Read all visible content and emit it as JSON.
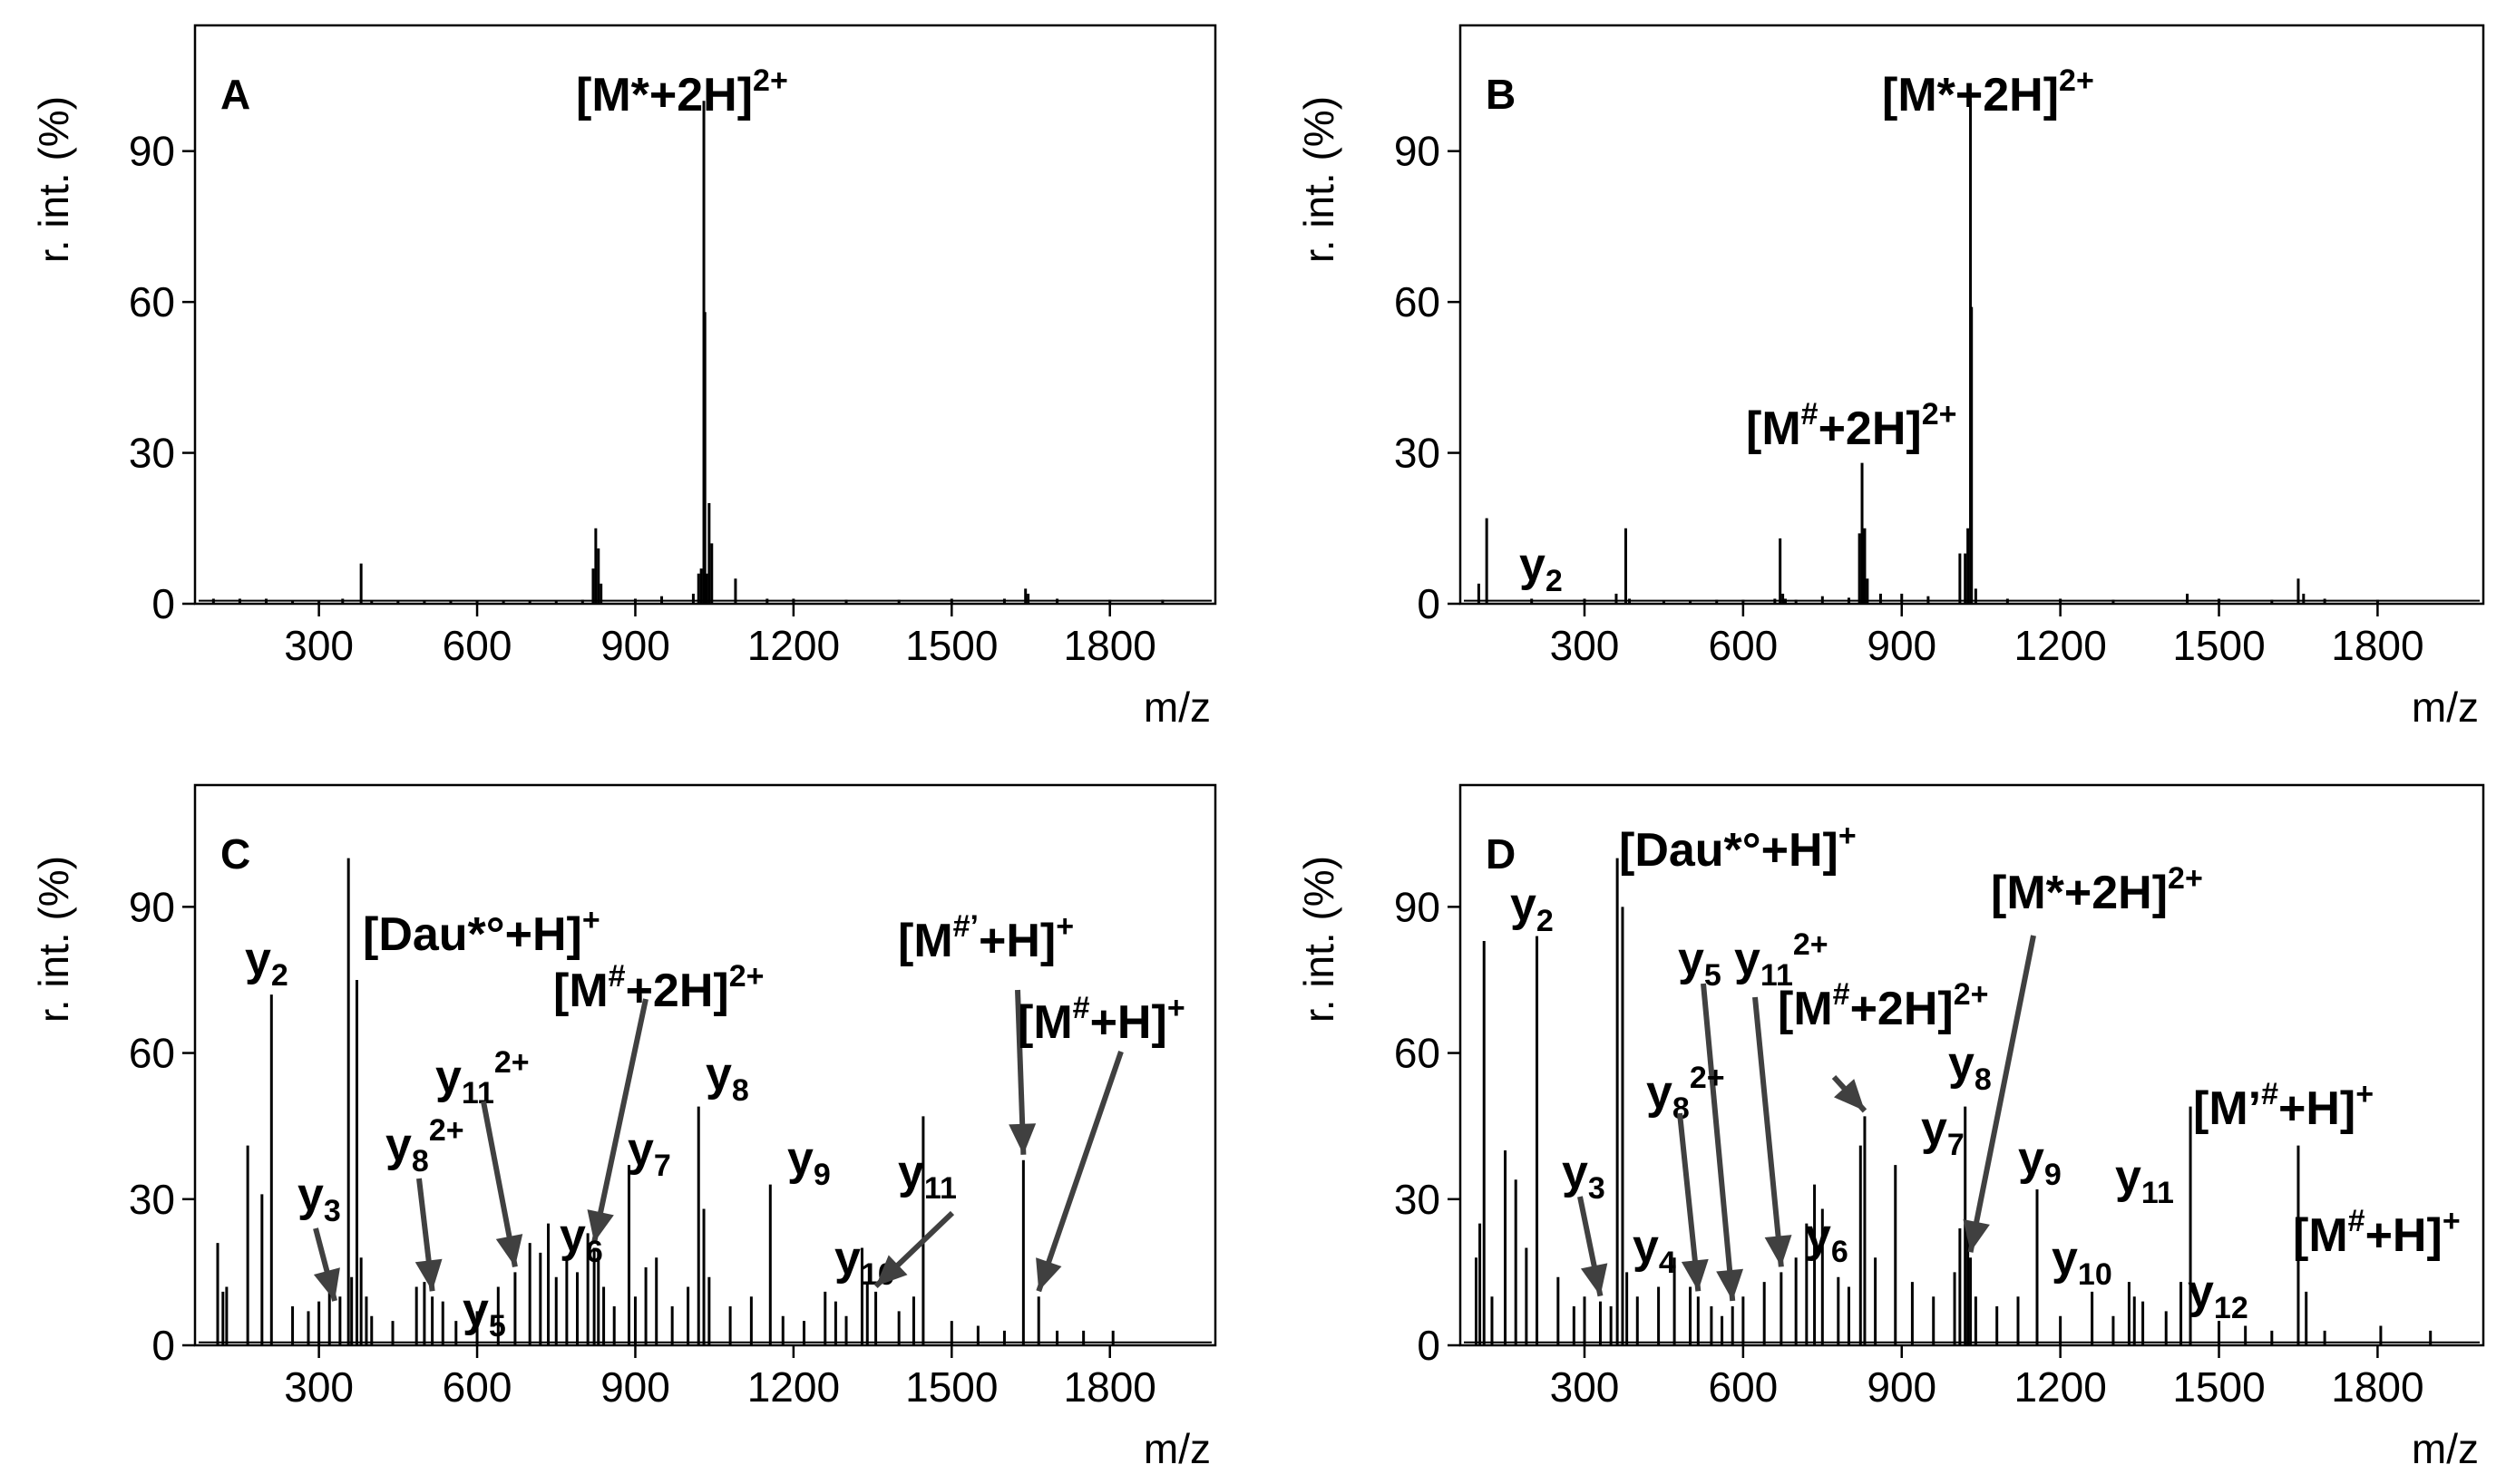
{
  "axes": {
    "ylabel": "r. int. (%)",
    "xlabel": "m/z",
    "ylim": [
      0,
      115
    ],
    "yticks": [
      0,
      30,
      60,
      90
    ],
    "xlim": [
      65,
      2000
    ],
    "xticks": [
      300,
      600,
      900,
      1200,
      1500,
      1800
    ]
  },
  "chart_data": [
    {
      "type": "bar",
      "panel": "A",
      "xlabel": "m/z",
      "ylabel": "r. int. (%)",
      "xlim": [
        65,
        2000
      ],
      "ylim": [
        0,
        115
      ],
      "x": [
        100,
        150,
        200,
        250,
        300,
        345,
        380,
        400,
        450,
        500,
        550,
        600,
        650,
        700,
        750,
        800,
        820,
        825,
        830,
        835,
        900,
        950,
        1010,
        1020,
        1025,
        1030,
        1032,
        1035,
        1040,
        1045,
        1090,
        1150,
        1200,
        1300,
        1400,
        1500,
        1600,
        1640,
        1645,
        1700,
        1800,
        1900
      ],
      "y": [
        1,
        1,
        1,
        0.5,
        0.5,
        1,
        8,
        0.5,
        0.5,
        0.5,
        0.5,
        0.5,
        0.5,
        0.5,
        0.5,
        0.8,
        7,
        15,
        11,
        4,
        1,
        1.5,
        2,
        6,
        7,
        100,
        58,
        6,
        20,
        12,
        5,
        1,
        1,
        0.8,
        0.8,
        1,
        1,
        3,
        2,
        1,
        0.8,
        0.8
      ],
      "annotations": [
        {
          "id": "ann-0",
          "text": "[M*+2H]",
          "sup": "2+",
          "x": 1030,
          "y": 100
        }
      ]
    },
    {
      "type": "bar",
      "panel": "B",
      "xlabel": "m/z",
      "ylabel": "r. int. (%)",
      "xlim": [
        65,
        2000
      ],
      "ylim": [
        0,
        115
      ],
      "x": [
        100,
        115,
        200,
        300,
        360,
        378,
        385,
        450,
        500,
        550,
        600,
        660,
        670,
        675,
        680,
        700,
        750,
        800,
        820,
        825,
        830,
        835,
        860,
        900,
        950,
        1010,
        1020,
        1025,
        1030,
        1032,
        1040,
        1100,
        1200,
        1300,
        1440,
        1500,
        1600,
        1650,
        1660,
        1700,
        1800
      ],
      "y": [
        4,
        17,
        1,
        1,
        2,
        15,
        1,
        0.5,
        0.5,
        0.8,
        0.8,
        1,
        13,
        2,
        1,
        0.8,
        1.5,
        1.2,
        14,
        28,
        15,
        5,
        2,
        2,
        1.5,
        10,
        10,
        15,
        100,
        59,
        3,
        1,
        1,
        0.8,
        2,
        1,
        0.8,
        5,
        2,
        1,
        0.8
      ],
      "annotations": [
        {
          "id": "ann-0",
          "text": "[M*+2H]",
          "sup": "2+",
          "x": 1030,
          "y": 100
        },
        {
          "id": "ann-1",
          "text": "[M",
          "sup": "#",
          "text2": "+2H]",
          "sup2": "2+",
          "x": 825,
          "y": 28
        },
        {
          "id": "ann-2",
          "text": "y",
          "sub": "2",
          "x": 200,
          "y": 2
        }
      ]
    },
    {
      "type": "bar",
      "panel": "C",
      "xlabel": "m/z",
      "ylabel": "r. int. (%)",
      "xlim": [
        65,
        2000
      ],
      "ylim": [
        0,
        115
      ],
      "x": [
        108,
        118,
        125,
        165,
        192,
        210,
        250,
        280,
        300,
        320,
        340,
        356,
        362,
        372,
        380,
        390,
        400,
        440,
        485,
        500,
        515,
        535,
        560,
        600,
        640,
        672,
        700,
        720,
        735,
        750,
        770,
        790,
        810,
        822,
        830,
        840,
        860,
        888,
        900,
        920,
        940,
        970,
        1000,
        1020,
        1030,
        1040,
        1080,
        1120,
        1156,
        1180,
        1220,
        1260,
        1280,
        1300,
        1330,
        1340,
        1356,
        1400,
        1428,
        1446,
        1500,
        1550,
        1600,
        1636,
        1665,
        1700,
        1750,
        1806
      ],
      "y": [
        21,
        11,
        12,
        41,
        31,
        72,
        8,
        7,
        9,
        12,
        10,
        100,
        14,
        75,
        18,
        10,
        6,
        5,
        12,
        13,
        10,
        9,
        5,
        7,
        12,
        15,
        21,
        19,
        25,
        14,
        18,
        15,
        23,
        20,
        19,
        12,
        8,
        37,
        10,
        16,
        18,
        8,
        12,
        49,
        28,
        14,
        8,
        10,
        33,
        6,
        5,
        11,
        9,
        6,
        20,
        13,
        11,
        7,
        10,
        47,
        5,
        4,
        3,
        38,
        10,
        3,
        3,
        3
      ],
      "annotations": [
        {
          "id": "ann-0",
          "text": "y",
          "sub": "2",
          "x": 210,
          "y": 72
        },
        {
          "id": "ann-1",
          "text": "[Dau*°+H]",
          "sup": "+",
          "x": 372,
          "y": 75
        },
        {
          "id": "ann-2",
          "text": "[M",
          "sup": "#",
          "text2": "+2H]",
          "sup2": "2+",
          "x": 822,
          "y": 20
        },
        {
          "id": "ann-3",
          "text": "[M",
          "sup": "#’",
          "text2": "+H]",
          "sup2": "+",
          "x": 1636,
          "y": 38
        },
        {
          "id": "ann-4",
          "text": "[M",
          "sup": "#",
          "text2": "+H]",
          "sup2": "+",
          "x": 1665,
          "y": 10
        },
        {
          "id": "ann-5",
          "text": "y",
          "sub": "11",
          "sup": "2+",
          "x": 672,
          "y": 15
        },
        {
          "id": "ann-6",
          "text": "y",
          "sub": "8",
          "sup": "2+",
          "x": 515,
          "y": 10
        },
        {
          "id": "ann-7",
          "text": "y",
          "sub": "3",
          "x": 330,
          "y": 8
        },
        {
          "id": "ann-8",
          "text": "y",
          "sub": "5",
          "x": 560,
          "y": 5
        },
        {
          "id": "ann-9",
          "text": "y",
          "sub": "6",
          "x": 735,
          "y": 25
        },
        {
          "id": "ann-10",
          "text": "y",
          "sub": "7",
          "x": 888,
          "y": 37
        },
        {
          "id": "ann-11",
          "text": "y",
          "sub": "8",
          "x": 1020,
          "y": 49
        },
        {
          "id": "ann-12",
          "text": "y",
          "sub": "9",
          "x": 1156,
          "y": 33
        },
        {
          "id": "ann-13",
          "text": "y",
          "sub": "10",
          "x": 1280,
          "y": 9
        },
        {
          "id": "ann-14",
          "text": "y",
          "sub": "11",
          "x": 1356,
          "y": 11
        }
      ]
    },
    {
      "type": "bar",
      "panel": "D",
      "xlabel": "m/z",
      "ylabel": "r. int. (%)",
      "xlim": [
        65,
        2000
      ],
      "ylim": [
        0,
        115
      ],
      "x": [
        95,
        102,
        110,
        125,
        150,
        170,
        190,
        210,
        250,
        280,
        300,
        330,
        350,
        362,
        372,
        380,
        400,
        440,
        470,
        500,
        515,
        540,
        560,
        580,
        600,
        640,
        672,
        700,
        720,
        735,
        750,
        780,
        800,
        822,
        830,
        850,
        888,
        920,
        960,
        1000,
        1010,
        1020,
        1025,
        1030,
        1040,
        1080,
        1120,
        1156,
        1200,
        1260,
        1300,
        1330,
        1340,
        1356,
        1400,
        1428,
        1446,
        1500,
        1550,
        1600,
        1650,
        1665,
        1700,
        1806,
        1900
      ],
      "y": [
        18,
        25,
        83,
        10,
        40,
        34,
        20,
        84,
        14,
        8,
        10,
        9,
        8,
        100,
        90,
        15,
        10,
        12,
        18,
        12,
        10,
        8,
        6,
        8,
        10,
        13,
        15,
        18,
        25,
        33,
        28,
        14,
        12,
        41,
        47,
        18,
        37,
        13,
        10,
        15,
        24,
        49,
        25,
        18,
        10,
        8,
        10,
        32,
        6,
        11,
        6,
        13,
        10,
        9,
        7,
        13,
        49,
        5,
        4,
        3,
        41,
        11,
        3,
        4,
        3
      ],
      "annotations": [
        {
          "id": "ann-0",
          "text": "y",
          "sub": "2",
          "x": 210,
          "y": 84
        },
        {
          "id": "ann-1",
          "text": "[Dau*°+H]",
          "sup": "+",
          "x": 372,
          "y": 90
        },
        {
          "id": "ann-2",
          "text": "[M*+2H]",
          "sup": "2+",
          "x": 1030,
          "y": 18
        },
        {
          "id": "ann-3",
          "text": "y",
          "sub": "5",
          "x": 580,
          "y": 8
        },
        {
          "id": "ann-4",
          "text": "y",
          "sub": "11",
          "sup": "2+",
          "x": 672,
          "y": 15
        },
        {
          "id": "ann-5",
          "text": "[M",
          "sup": "#",
          "text2": "+2H]",
          "sup2": "2+",
          "x": 830,
          "y": 47
        },
        {
          "id": "ann-6",
          "text": "y",
          "sub": "8",
          "sup": "2+",
          "x": 515,
          "y": 10
        },
        {
          "id": "ann-7",
          "text": "y",
          "sub": "8",
          "x": 1020,
          "y": 49
        },
        {
          "id": "ann-8",
          "text": "y",
          "sub": "7",
          "x": 888,
          "y": 37
        },
        {
          "id": "ann-9",
          "text": "[M’",
          "sup": "#",
          "text2": "+H]",
          "sup2": "+",
          "x": 1446,
          "y": 49
        },
        {
          "id": "ann-10",
          "text": "y",
          "sub": "3",
          "x": 330,
          "y": 9
        },
        {
          "id": "ann-11",
          "text": "y",
          "sub": "4",
          "x": 470,
          "y": 18
        },
        {
          "id": "ann-12",
          "text": "y",
          "sub": "6",
          "x": 735,
          "y": 33
        },
        {
          "id": "ann-13",
          "text": "y",
          "sub": "9",
          "x": 1156,
          "y": 32
        },
        {
          "id": "ann-14",
          "text": "y",
          "sub": "10",
          "x": 1260,
          "y": 11
        },
        {
          "id": "ann-15",
          "text": "y",
          "sub": "11",
          "x": 1340,
          "y": 10
        },
        {
          "id": "ann-16",
          "text": "y",
          "sub": "12",
          "x": 1428,
          "y": 13
        },
        {
          "id": "ann-17",
          "text": "[M",
          "sup": "#",
          "text2": "+H]",
          "sup2": "+",
          "x": 1650,
          "y": 41
        }
      ]
    }
  ]
}
